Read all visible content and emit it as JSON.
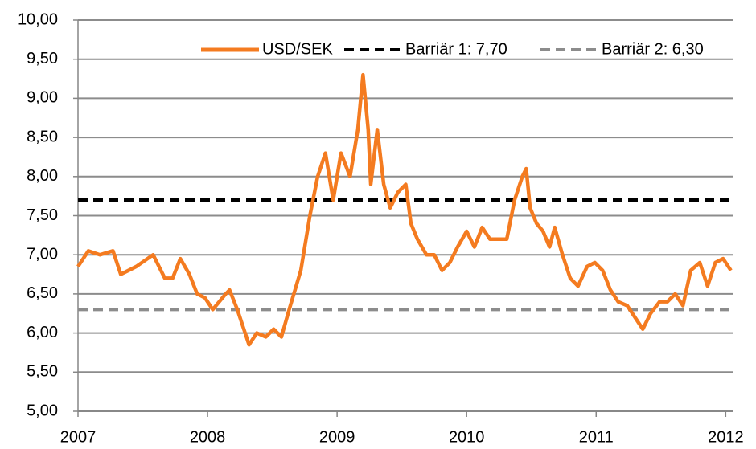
{
  "chart_data": {
    "type": "line",
    "xlim": [
      2007,
      2012.06
    ],
    "xticks": [
      2007,
      2008,
      2009,
      2010,
      2011,
      2012
    ],
    "ylim": [
      5,
      10
    ],
    "yticks": [
      {
        "value": 5,
        "label": "5,00"
      },
      {
        "value": 5.5,
        "label": "5,50"
      },
      {
        "value": 6,
        "label": "6,00"
      },
      {
        "value": 6.5,
        "label": "6,50"
      },
      {
        "value": 7,
        "label": "7,00"
      },
      {
        "value": 7.5,
        "label": "7,50"
      },
      {
        "value": 8,
        "label": "8,00"
      },
      {
        "value": 8.5,
        "label": "8,50"
      },
      {
        "value": 9,
        "label": "9,00"
      },
      {
        "value": 9.5,
        "label": "9,50"
      },
      {
        "value": 10,
        "label": "10,00"
      }
    ],
    "grid": true,
    "legend": "top",
    "series": [
      {
        "name": "USD/SEK",
        "color": "#f47b20",
        "dashed": false,
        "x": [
          2007.0,
          2007.08,
          2007.17,
          2007.27,
          2007.33,
          2007.39,
          2007.45,
          2007.58,
          2007.67,
          2007.73,
          2007.79,
          2007.86,
          2007.92,
          2007.98,
          2008.04,
          2008.14,
          2008.17,
          2008.23,
          2008.29,
          2008.32,
          2008.38,
          2008.45,
          2008.51,
          2008.57,
          2008.63,
          2008.72,
          2008.79,
          2008.85,
          2008.91,
          2008.97,
          2009.03,
          2009.1,
          2009.16,
          2009.2,
          2009.24,
          2009.26,
          2009.31,
          2009.36,
          2009.41,
          2009.47,
          2009.53,
          2009.57,
          2009.62,
          2009.69,
          2009.75,
          2009.81,
          2009.87,
          2009.93,
          2010.0,
          2010.06,
          2010.12,
          2010.18,
          2010.24,
          2010.31,
          2010.37,
          2010.43,
          2010.46,
          2010.49,
          2010.54,
          2010.59,
          2010.64,
          2010.68,
          2010.74,
          2010.8,
          2010.86,
          2010.93,
          2010.99,
          2011.05,
          2011.11,
          2011.17,
          2011.24,
          2011.3,
          2011.36,
          2011.42,
          2011.49,
          2011.55,
          2011.61,
          2011.67,
          2011.73,
          2011.8,
          2011.86,
          2011.92,
          2011.98,
          2012.04
        ],
        "values": [
          6.85,
          7.05,
          7.0,
          7.05,
          6.75,
          6.8,
          6.85,
          7.0,
          6.7,
          6.7,
          6.95,
          6.75,
          6.5,
          6.45,
          6.3,
          6.5,
          6.55,
          6.3,
          6.0,
          5.85,
          6.0,
          5.95,
          6.05,
          5.95,
          6.3,
          6.8,
          7.5,
          8.0,
          8.3,
          7.7,
          8.3,
          8.0,
          8.6,
          9.3,
          8.6,
          7.9,
          8.6,
          7.9,
          7.6,
          7.8,
          7.9,
          7.4,
          7.2,
          7.0,
          7.0,
          6.8,
          6.9,
          7.1,
          7.3,
          7.1,
          7.35,
          7.2,
          7.2,
          7.2,
          7.7,
          8.0,
          8.1,
          7.6,
          7.4,
          7.3,
          7.1,
          7.35,
          7.0,
          6.7,
          6.6,
          6.85,
          6.9,
          6.8,
          6.55,
          6.4,
          6.35,
          6.2,
          6.05,
          6.25,
          6.4,
          6.4,
          6.5,
          6.35,
          6.8,
          6.9,
          6.6,
          6.9,
          6.95,
          6.8
        ]
      },
      {
        "name": "Barriär 1: 7,70",
        "color": "#000000",
        "dashed": true,
        "x": [
          2007,
          2012.06
        ],
        "values": [
          7.7,
          7.7
        ]
      },
      {
        "name": "Barriär 2: 6,30",
        "color": "#8c8c8c",
        "dashed": true,
        "x": [
          2007,
          2012.06
        ],
        "values": [
          6.3,
          6.3
        ]
      }
    ]
  }
}
